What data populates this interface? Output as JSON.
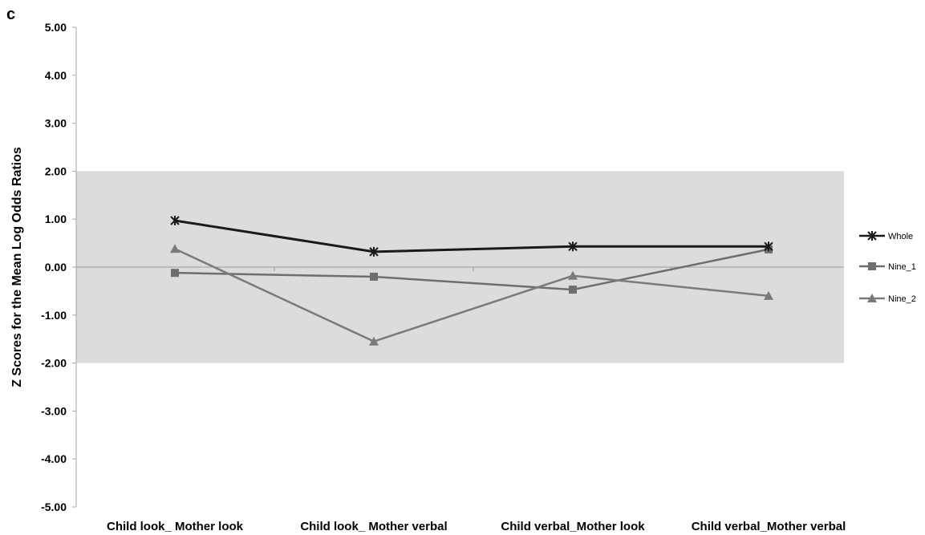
{
  "panel_label": "c",
  "chart_data": {
    "type": "line",
    "title": "",
    "xlabel": "",
    "ylabel": "Z Scores for the Mean Log Odds Ratios",
    "ylim": [
      -5,
      5
    ],
    "yticks": [
      5,
      4,
      3,
      2,
      1,
      0,
      -1,
      -2,
      -3,
      -4,
      -5
    ],
    "ytick_labels": [
      "5.00",
      "4.00",
      "3.00",
      "2.00",
      "1.00",
      "0.00",
      "-1.00",
      "-2.00",
      "-3.00",
      "-4.00",
      "-5.00"
    ],
    "categories": [
      "Child look_ Mother look",
      "Child look_ Mother verbal",
      "Child verbal_Mother look",
      "Child verbal_Mother verbal"
    ],
    "shaded_band": [
      -2,
      2
    ],
    "legend_position": "right",
    "series": [
      {
        "name": "Whole",
        "marker": "asterisk",
        "color": "#1a1a1a",
        "values": [
          0.97,
          0.32,
          0.43,
          0.43
        ]
      },
      {
        "name": "Nine_1",
        "marker": "square",
        "color": "#6e6e6e",
        "values": [
          -0.12,
          -0.2,
          -0.47,
          0.37
        ]
      },
      {
        "name": "Nine_2",
        "marker": "triangle",
        "color": "#7a7a7a",
        "values": [
          0.38,
          -1.55,
          -0.18,
          -0.6
        ]
      }
    ]
  }
}
